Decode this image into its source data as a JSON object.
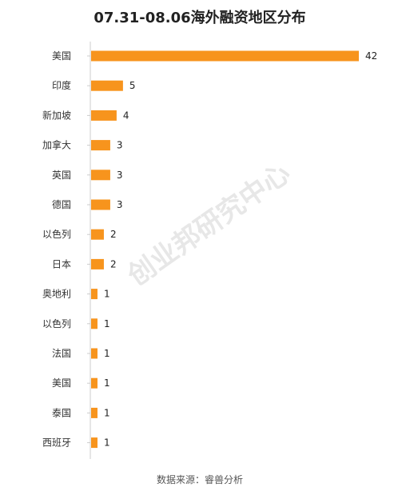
{
  "chart_data": {
    "type": "bar",
    "orientation": "horizontal",
    "title": "07.31-08.06海外融资地区分布",
    "categories": [
      "美国",
      "印度",
      "新加坡",
      "加拿大",
      "英国",
      "德国",
      "以色列",
      "日本",
      "奥地利",
      "以色列",
      "法国",
      "美国",
      "泰国",
      "西班牙"
    ],
    "values": [
      42,
      5,
      4,
      3,
      3,
      3,
      2,
      2,
      1,
      1,
      1,
      1,
      1,
      1
    ],
    "xlim": [
      0,
      42
    ],
    "grid": false,
    "legend": "none",
    "bar_color": "#f7941d",
    "axis_color": "#cccccc"
  },
  "source": "数据来源：睿兽分析",
  "watermark": "创业邦研究中心"
}
